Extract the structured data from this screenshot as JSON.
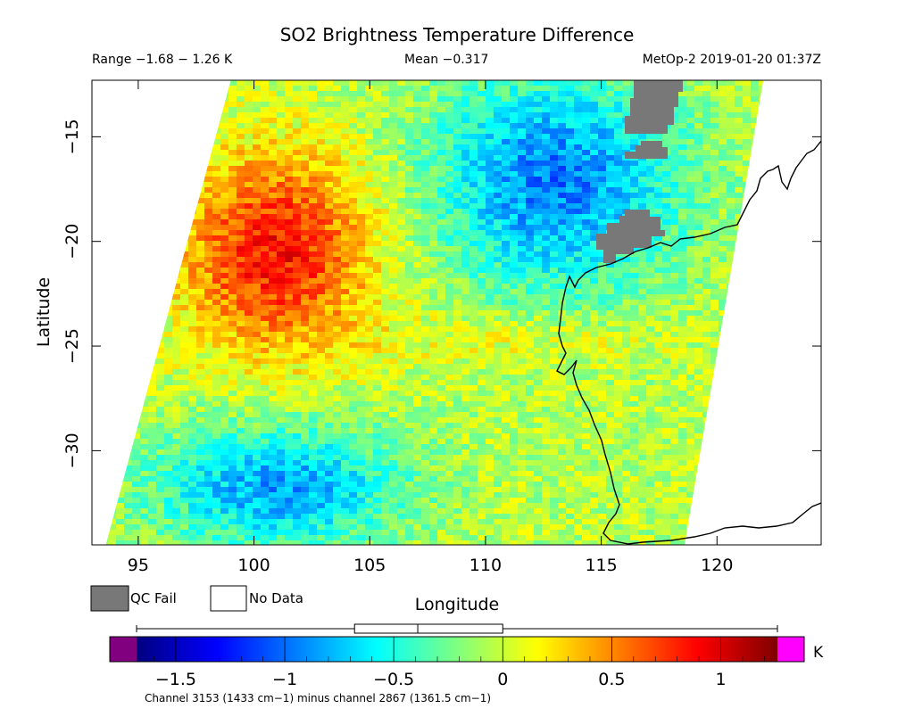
{
  "title": "SO2 Brightness Temperature Difference",
  "subtitle": {
    "range": "Range −1.68 − 1.26 K",
    "mean": "Mean −0.317",
    "platform": "MetOp-2 2019-01-20 01:37Z"
  },
  "axes": {
    "xlabel": "Longitude",
    "ylabel": "Latitude",
    "xticks": [
      95,
      100,
      105,
      110,
      115,
      120
    ],
    "xtick_labels": [
      "95",
      "100",
      "105",
      "110",
      "115",
      "120"
    ],
    "yticks": [
      -15,
      -20,
      -25,
      -30
    ],
    "ytick_labels": [
      "−15",
      "−20",
      "−25",
      "−30"
    ],
    "xlim": [
      93,
      124.5
    ],
    "ylim": [
      -34.5,
      -12.3
    ]
  },
  "legend": {
    "qc_fail": {
      "label": "QC Fail",
      "color": "#787878"
    },
    "no_data": {
      "label": "No Data",
      "color": "#ffffff"
    }
  },
  "colorbar": {
    "unit": "K",
    "min": -1.68,
    "max": 1.26,
    "ticks": [
      -1.5,
      -1,
      -0.5,
      0,
      0.5,
      1
    ],
    "tick_labels": [
      "−1.5",
      "−1",
      "−0.5",
      "0",
      "0.5",
      "1"
    ],
    "under_color": "#800080",
    "over_color": "#ff00ff",
    "caption": "Channel 3153 (1433 cm−1) minus channel 2867 (1361.5 cm−1)",
    "boxplot": {
      "min": -1.68,
      "q1": -0.68,
      "median": -0.39,
      "q3": 0.0,
      "max": 1.26
    }
  },
  "chart_data": {
    "type": "heatmap",
    "title": "SO2 Brightness Temperature Difference",
    "xlabel": "Longitude",
    "ylabel": "Latitude",
    "value_range": [
      -1.68,
      1.26
    ],
    "mean": -0.317,
    "unit": "K",
    "swath_lon_corners": {
      "top_left": [
        99.0,
        -12.3
      ],
      "top_right": [
        122.0,
        -12.3
      ],
      "bottom_left": [
        93.6,
        -34.5
      ],
      "bottom_right": [
        118.6,
        -34.5
      ]
    },
    "qc_fail_regions": [
      {
        "lon": [
          116.0,
          118.5
        ],
        "lat": [
          -12.3,
          -15.3
        ]
      },
      {
        "lon": [
          115.8,
          117.4
        ],
        "lat": [
          -15.6,
          -16.5
        ]
      },
      {
        "lon": [
          114.5,
          117.5
        ],
        "lat": [
          -19.0,
          -21.2
        ]
      }
    ],
    "features": [
      {
        "region": "western anomaly",
        "lon": [
          97,
          105
        ],
        "lat": [
          -16,
          -25
        ],
        "level": 0.9
      },
      {
        "region": "northern cold",
        "lon": [
          108,
          118
        ],
        "lat": [
          -12.3,
          -22
        ],
        "level": -0.9
      },
      {
        "region": "central band",
        "lon": [
          105,
          118
        ],
        "lat": [
          -23.5,
          -26
        ],
        "level": 0.2
      },
      {
        "region": "southern cold",
        "lon": [
          96,
          106
        ],
        "lat": [
          -29,
          -34.5
        ],
        "level": -0.8
      }
    ]
  }
}
